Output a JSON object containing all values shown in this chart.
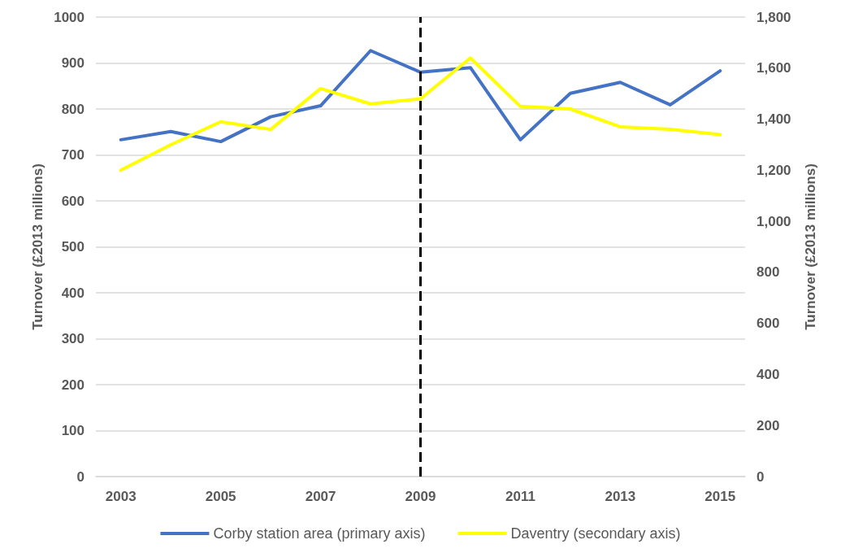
{
  "chart_data": {
    "type": "line",
    "ylabel": "Turnover (£2013 millions)",
    "y2label": "Turnover (£2013 millions)",
    "x": [
      2003,
      2004,
      2005,
      2006,
      2007,
      2008,
      2009,
      2010,
      2011,
      2012,
      2013,
      2014,
      2015
    ],
    "series": [
      {
        "name": "Corby station area (primary axis)",
        "color": "#4472c4",
        "values": [
          733,
          751,
          729,
          783,
          807,
          927,
          880,
          890,
          733,
          834,
          858,
          809,
          883
        ]
      },
      {
        "name": "Daventry (secondary axis)",
        "color": "#ffff00",
        "axis": "y2",
        "values": [
          1200,
          1300,
          1390,
          1360,
          1520,
          1460,
          1480,
          1640,
          1450,
          1440,
          1370,
          1360,
          1340
        ]
      }
    ],
    "xlim": [
      2002.5,
      2015.5
    ],
    "xticks": [
      2003,
      2005,
      2007,
      2009,
      2011,
      2013,
      2015
    ],
    "ylim": [
      0,
      1000
    ],
    "yticks": [
      0,
      100,
      200,
      300,
      400,
      500,
      600,
      700,
      800,
      900,
      1000
    ],
    "y2lim": [
      0,
      1800
    ],
    "y2ticks": [
      0,
      200,
      400,
      600,
      800,
      {
        "value": 1000,
        "label": "1,000"
      },
      {
        "value": 1200,
        "label": "1,200"
      },
      {
        "value": 1400,
        "label": "1,400"
      },
      {
        "value": 1600,
        "label": "1,600"
      },
      {
        "value": 1800,
        "label": "1,800"
      }
    ],
    "ref_lines": [
      {
        "axis": "x",
        "value": 2009,
        "color": "#000000",
        "line_style": "dashed"
      }
    ],
    "grid": "y",
    "legend": "bottom",
    "marker": "none",
    "line_style": "solid"
  }
}
